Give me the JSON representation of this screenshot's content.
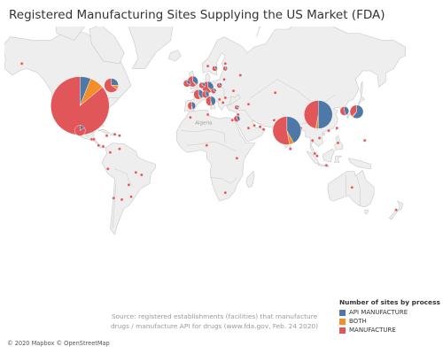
{
  "title": "Registered Manufacturing Sites Supplying the US Market (FDA)",
  "source_text": "Source: registered establishments (facilities) that manufacture drugs / manufacture API for drugs (www.fda.gov, Feb. 24 2020)",
  "credit": "© 2020 Mapbox © OpenStreetMap",
  "labels": {
    "algeria": "Algeria"
  },
  "legend": {
    "title": "Number of sites by process",
    "items": [
      {
        "label": "API MANUFACTURE",
        "color": "#4e79a7"
      },
      {
        "label": "BOTH",
        "color": "#f28e2b"
      },
      {
        "label": "MANUFACTURE",
        "color": "#e15759"
      }
    ]
  },
  "colors": {
    "water": "#ffffff",
    "land": "#eeeeee",
    "border": "#c8c8c8",
    "api": "#4e79a7",
    "both": "#f28e2b",
    "manufacture": "#e15759"
  },
  "chart_data": {
    "type": "pie-map",
    "pies": [
      {
        "lon": -100,
        "lat": 40,
        "api": 0.06,
        "both": 0.08,
        "manufacture": 0.86
      },
      {
        "lon": -73,
        "lat": 52,
        "api": 0.25,
        "both": 0.1,
        "manufacture": 0.65
      },
      {
        "lon": -100,
        "lat": 22,
        "api": 0.15,
        "both": 0,
        "manufacture": 0.85
      },
      {
        "lon": 78,
        "lat": 22,
        "api": 0.42,
        "both": 0.05,
        "manufacture": 0.53
      },
      {
        "lon": 105,
        "lat": 34,
        "api": 0.5,
        "both": 0.03,
        "manufacture": 0.47
      },
      {
        "lon": 127.5,
        "lat": 36.5,
        "api": 0.45,
        "both": 0,
        "manufacture": 0.55
      },
      {
        "lon": 138,
        "lat": 36,
        "api": 0.6,
        "both": 0.03,
        "manufacture": 0.37
      },
      {
        "lon": -3,
        "lat": 54,
        "api": 0.35,
        "both": 0.05,
        "manufacture": 0.6
      },
      {
        "lon": 2,
        "lat": 47,
        "api": 0.4,
        "both": 0.05,
        "manufacture": 0.55
      },
      {
        "lon": 10,
        "lat": 51,
        "api": 0.35,
        "both": 0.05,
        "manufacture": 0.6
      },
      {
        "lon": 12.5,
        "lat": 43,
        "api": 0.45,
        "both": 0.05,
        "manufacture": 0.5
      },
      {
        "lon": -4,
        "lat": 40,
        "api": 0.45,
        "both": 0.05,
        "manufacture": 0.5
      },
      {
        "lon": -8,
        "lat": 53,
        "api": 0.3,
        "both": 0,
        "manufacture": 0.7
      },
      {
        "lon": 8,
        "lat": 47,
        "api": 0.4,
        "both": 0,
        "manufacture": 0.6
      },
      {
        "lon": 5,
        "lat": 52,
        "api": 0.3,
        "both": 0,
        "manufacture": 0.7
      },
      {
        "lon": 15,
        "lat": 49,
        "api": 0.3,
        "both": 0,
        "manufacture": 0.7
      },
      {
        "lon": 20,
        "lat": 52,
        "api": 0.3,
        "both": 0,
        "manufacture": 0.7
      },
      {
        "lon": 16,
        "lat": 60,
        "api": 0.3,
        "both": 0,
        "manufacture": 0.7
      },
      {
        "lon": 35,
        "lat": 31,
        "api": 0.4,
        "both": 0,
        "manufacture": 0.6
      },
      {
        "lon": 35,
        "lat": 39,
        "api": 0.3,
        "both": 0,
        "manufacture": 0.7
      },
      {
        "lon": 25,
        "lat": 60,
        "api": 0.3,
        "both": 0,
        "manufacture": 0.7
      }
    ],
    "dots": [
      {
        "lon": 10,
        "lat": 61
      },
      {
        "lon": 25,
        "lat": 62
      },
      {
        "lon": 24,
        "lat": 55
      },
      {
        "lon": 38,
        "lat": 57
      },
      {
        "lon": 32,
        "lat": 49
      },
      {
        "lon": 25,
        "lat": 45
      },
      {
        "lon": 23,
        "lat": 42
      },
      {
        "lon": 20,
        "lat": 44
      },
      {
        "lon": 45,
        "lat": 41
      },
      {
        "lon": 55,
        "lat": 25
      },
      {
        "lon": 58,
        "lat": 23
      },
      {
        "lon": 50,
        "lat": 26
      },
      {
        "lon": 45,
        "lat": 24
      },
      {
        "lon": 36,
        "lat": 34
      },
      {
        "lon": 31,
        "lat": 30
      },
      {
        "lon": 10,
        "lat": 34
      },
      {
        "lon": 9,
        "lat": 10
      },
      {
        "lon": -5,
        "lat": 32
      },
      {
        "lon": 35,
        "lat": -1
      },
      {
        "lon": 25,
        "lat": -29
      },
      {
        "lon": 67,
        "lat": 30
      },
      {
        "lon": 90,
        "lat": 24
      },
      {
        "lon": 81,
        "lat": 7
      },
      {
        "lon": 100,
        "lat": 14
      },
      {
        "lon": 106,
        "lat": 16
      },
      {
        "lon": 102,
        "lat": 3
      },
      {
        "lon": 104,
        "lat": 1
      },
      {
        "lon": 112,
        "lat": -7
      },
      {
        "lon": 122,
        "lat": 12
      },
      {
        "lon": 121,
        "lat": 24
      },
      {
        "lon": 114,
        "lat": 22
      },
      {
        "lon": 134,
        "lat": -25
      },
      {
        "lon": 172,
        "lat": -41
      },
      {
        "lon": -64,
        "lat": -34
      },
      {
        "lon": -71,
        "lat": -33
      },
      {
        "lon": -76,
        "lat": -10
      },
      {
        "lon": -74,
        "lat": 4
      },
      {
        "lon": -66,
        "lat": 7
      },
      {
        "lon": -84,
        "lat": 10
      },
      {
        "lon": -88,
        "lat": 15
      },
      {
        "lon": -90,
        "lat": 15
      },
      {
        "lon": -80,
        "lat": 9
      },
      {
        "lon": -66,
        "lat": 18
      },
      {
        "lon": -70,
        "lat": 19
      },
      {
        "lon": -77,
        "lat": 18
      },
      {
        "lon": -56,
        "lat": -32
      },
      {
        "lon": -58,
        "lat": -23
      },
      {
        "lon": -52,
        "lat": -13
      },
      {
        "lon": -47,
        "lat": -15
      },
      {
        "lon": -150,
        "lat": 62
      },
      {
        "lon": 68,
        "lat": 48
      },
      {
        "lon": 145,
        "lat": 14
      }
    ]
  }
}
